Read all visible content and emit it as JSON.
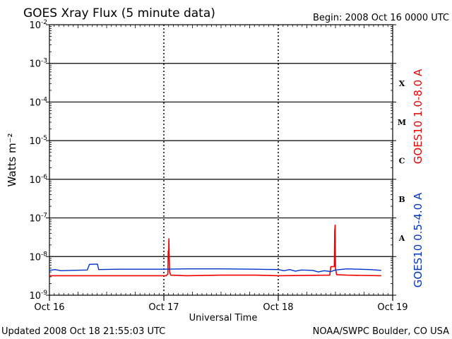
{
  "title": "GOES Xray Flux (5 minute data)",
  "begin_label": "Begin:  2008 Oct 16 0000 UTC",
  "updated_label": "Updated 2008 Oct 18 21:55:03 UTC",
  "credit": "NOAA/SWPC Boulder, CO USA",
  "chart_data": {
    "type": "line",
    "title": "GOES Xray Flux (5 minute data)",
    "xlabel": "Universal Time",
    "ylabel": "Watts m⁻²",
    "x_unit": "days since 2008 Oct 16 0000 UTC",
    "x_range": [
      0,
      3
    ],
    "x_ticks": [
      {
        "x": 0,
        "label": "Oct 16"
      },
      {
        "x": 1,
        "label": "Oct 17"
      },
      {
        "x": 2,
        "label": "Oct 18"
      },
      {
        "x": 3,
        "label": "Oct 19"
      }
    ],
    "y_scale": "log",
    "ylim": [
      1e-09,
      0.01
    ],
    "y_ticks": [
      {
        "exp": -2,
        "base": "10",
        "sup": "-2"
      },
      {
        "exp": -3,
        "base": "10",
        "sup": "-3"
      },
      {
        "exp": -4,
        "base": "10",
        "sup": "-4"
      },
      {
        "exp": -5,
        "base": "10",
        "sup": "-5"
      },
      {
        "exp": -6,
        "base": "10",
        "sup": "-6"
      },
      {
        "exp": -7,
        "base": "10",
        "sup": "-7"
      },
      {
        "exp": -8,
        "base": "10",
        "sup": "-8"
      },
      {
        "exp": -9,
        "base": "10",
        "sup": "-9"
      }
    ],
    "flare_classes": [
      {
        "label": "X",
        "log_center": -3.5
      },
      {
        "label": "M",
        "log_center": -4.5
      },
      {
        "label": "C",
        "log_center": -5.5
      },
      {
        "label": "B",
        "log_center": -6.5
      },
      {
        "label": "A",
        "log_center": -7.5
      }
    ],
    "series": [
      {
        "name": "GOES10 1.0-8.0 A",
        "color": "#ee0000",
        "points": [
          [
            0.0,
            3.2e-09
          ],
          [
            1.02,
            3.2e-09
          ],
          [
            1.035,
            3.5e-09
          ],
          [
            1.038,
            1.4e-08
          ],
          [
            1.042,
            1.2e-08
          ],
          [
            1.044,
            2.9e-08
          ],
          [
            1.047,
            1e-08
          ],
          [
            1.05,
            4e-09
          ],
          [
            1.06,
            3.3e-09
          ],
          [
            1.2,
            3.2e-09
          ],
          [
            1.5,
            3.3e-09
          ],
          [
            1.8,
            3.3e-09
          ],
          [
            2.0,
            3.2e-09
          ],
          [
            2.45,
            3.3e-09
          ],
          [
            2.46,
            5.5e-09
          ],
          [
            2.49,
            5.5e-09
          ],
          [
            2.493,
            4.5e-08
          ],
          [
            2.497,
            6.5e-08
          ],
          [
            2.5,
            5e-09
          ],
          [
            2.51,
            3.4e-09
          ],
          [
            2.6,
            3.3e-09
          ],
          [
            2.9,
            3.2e-09
          ]
        ]
      },
      {
        "name": "GOES10 0.5-4.0 A",
        "color": "#0033cc",
        "points": [
          [
            0.0,
            4.4e-09
          ],
          [
            0.05,
            4.6e-09
          ],
          [
            0.1,
            4.3e-09
          ],
          [
            0.2,
            4.4e-09
          ],
          [
            0.33,
            4.5e-09
          ],
          [
            0.35,
            6.3e-09
          ],
          [
            0.42,
            6.4e-09
          ],
          [
            0.43,
            4.6e-09
          ],
          [
            0.6,
            4.7e-09
          ],
          [
            0.9,
            4.7e-09
          ],
          [
            1.0,
            4.7e-09
          ],
          [
            1.2,
            4.8e-09
          ],
          [
            1.5,
            4.8e-09
          ],
          [
            1.8,
            4.7e-09
          ],
          [
            2.0,
            4.6e-09
          ],
          [
            2.05,
            4.3e-09
          ],
          [
            2.1,
            4.6e-09
          ],
          [
            2.15,
            4.2e-09
          ],
          [
            2.2,
            4.5e-09
          ],
          [
            2.3,
            4.4e-09
          ],
          [
            2.35,
            4e-09
          ],
          [
            2.4,
            4.3e-09
          ],
          [
            2.46,
            4.1e-09
          ],
          [
            2.5,
            4.5e-09
          ],
          [
            2.6,
            4.8e-09
          ],
          [
            2.7,
            4.7e-09
          ],
          [
            2.8,
            4.6e-09
          ],
          [
            2.9,
            4.4e-09
          ]
        ]
      }
    ]
  }
}
